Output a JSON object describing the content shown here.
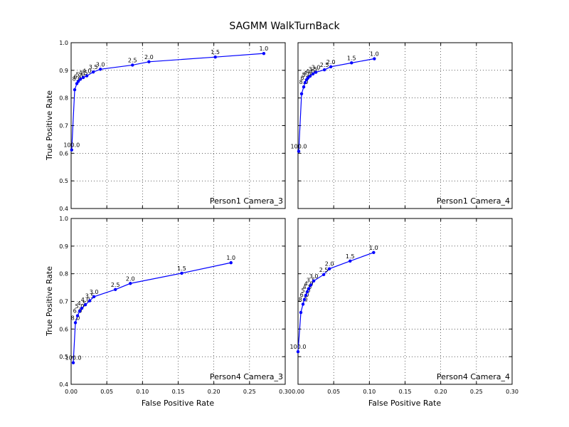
{
  "title": "SAGMM WalkTurnBack",
  "xlabel": "False Positive Rate",
  "ylabel": "True Positive Rate",
  "colors": {
    "series": "#0000ff",
    "axes": "#000000"
  },
  "chart_data": [
    {
      "type": "line",
      "panel_label": "Person1 Camera_3",
      "xlim": [
        0,
        0.3
      ],
      "ylim": [
        0.4,
        1.0
      ],
      "xticks": [
        "0.00",
        "0.05",
        "0.10",
        "0.15",
        "0.20",
        "0.25",
        "0.30"
      ],
      "yticks": [
        "0.4",
        "0.5",
        "0.6",
        "0.7",
        "0.8",
        "0.9",
        "1.0"
      ],
      "grid": true,
      "points": [
        {
          "x": 0.0008,
          "y": 0.612,
          "label": "100.0"
        },
        {
          "x": 0.005,
          "y": 0.83,
          "label": ""
        },
        {
          "x": 0.008,
          "y": 0.852,
          "label": "8.0"
        },
        {
          "x": 0.01,
          "y": 0.86,
          "label": "6.0"
        },
        {
          "x": 0.013,
          "y": 0.868,
          "label": "5.0"
        },
        {
          "x": 0.017,
          "y": 0.874,
          "label": "4.5"
        },
        {
          "x": 0.022,
          "y": 0.88,
          "label": "4.0"
        },
        {
          "x": 0.031,
          "y": 0.894,
          "label": "3.5"
        },
        {
          "x": 0.041,
          "y": 0.904,
          "label": "3.0"
        },
        {
          "x": 0.086,
          "y": 0.919,
          "label": "2.5"
        },
        {
          "x": 0.109,
          "y": 0.931,
          "label": "2.0"
        },
        {
          "x": 0.202,
          "y": 0.948,
          "label": "1.5"
        },
        {
          "x": 0.27,
          "y": 0.961,
          "label": "1.0"
        }
      ]
    },
    {
      "type": "line",
      "panel_label": "Person1 Camera_4",
      "xlim": [
        0,
        0.3
      ],
      "ylim": [
        0.4,
        1.0
      ],
      "xticks": [
        "0.00",
        "0.05",
        "0.10",
        "0.15",
        "0.20",
        "0.25",
        "0.30"
      ],
      "yticks": [],
      "grid": true,
      "points": [
        {
          "x": 0.001,
          "y": 0.607,
          "label": "100.0"
        },
        {
          "x": 0.005,
          "y": 0.815,
          "label": ""
        },
        {
          "x": 0.008,
          "y": 0.84,
          "label": "8.0"
        },
        {
          "x": 0.01,
          "y": 0.856,
          "label": "6.0"
        },
        {
          "x": 0.012,
          "y": 0.866,
          "label": "5.0"
        },
        {
          "x": 0.014,
          "y": 0.873,
          "label": "4.5"
        },
        {
          "x": 0.017,
          "y": 0.879,
          "label": "4.0"
        },
        {
          "x": 0.021,
          "y": 0.887,
          "label": "3.5"
        },
        {
          "x": 0.025,
          "y": 0.893,
          "label": "3.0"
        },
        {
          "x": 0.037,
          "y": 0.902,
          "label": "2.5"
        },
        {
          "x": 0.046,
          "y": 0.913,
          "label": "2.0"
        },
        {
          "x": 0.075,
          "y": 0.927,
          "label": "1.5"
        },
        {
          "x": 0.107,
          "y": 0.942,
          "label": "1.0"
        }
      ]
    },
    {
      "type": "line",
      "panel_label": "Person4 Camera_3",
      "xlim": [
        0,
        0.3
      ],
      "ylim": [
        0.4,
        1.0
      ],
      "xticks": [
        "0.00",
        "0.05",
        "0.10",
        "0.15",
        "0.20",
        "0.25",
        "0.30"
      ],
      "yticks": [
        "0.4",
        "0.5",
        "0.6",
        "0.7",
        "0.8",
        "0.9",
        "1.0"
      ],
      "grid": true,
      "points": [
        {
          "x": 0.003,
          "y": 0.478,
          "label": "100.0"
        },
        {
          "x": 0.006,
          "y": 0.623,
          "label": "8.0"
        },
        {
          "x": 0.009,
          "y": 0.648,
          "label": "6.0"
        },
        {
          "x": 0.012,
          "y": 0.665,
          "label": "5.0"
        },
        {
          "x": 0.015,
          "y": 0.675,
          "label": "4.5"
        },
        {
          "x": 0.02,
          "y": 0.688,
          "label": "4.0"
        },
        {
          "x": 0.026,
          "y": 0.702,
          "label": "3.5"
        },
        {
          "x": 0.032,
          "y": 0.717,
          "label": "3.0"
        },
        {
          "x": 0.062,
          "y": 0.743,
          "label": "2.5"
        },
        {
          "x": 0.083,
          "y": 0.765,
          "label": "2.0"
        },
        {
          "x": 0.155,
          "y": 0.802,
          "label": "1.5"
        },
        {
          "x": 0.224,
          "y": 0.84,
          "label": "1.0"
        }
      ]
    },
    {
      "type": "line",
      "panel_label": "Person4 Camera_4",
      "xlim": [
        0,
        0.3
      ],
      "ylim": [
        0.4,
        1.0
      ],
      "xticks": [
        "0.00",
        "0.05",
        "0.10",
        "0.15",
        "0.20",
        "0.25",
        "0.30"
      ],
      "yticks": [],
      "grid": true,
      "points": [
        {
          "x": 0.0,
          "y": 0.518,
          "label": "100.0"
        },
        {
          "x": 0.004,
          "y": 0.66,
          "label": ""
        },
        {
          "x": 0.007,
          "y": 0.69,
          "label": "8.0"
        },
        {
          "x": 0.009,
          "y": 0.707,
          "label": "6.0"
        },
        {
          "x": 0.011,
          "y": 0.722,
          "label": "5.0"
        },
        {
          "x": 0.013,
          "y": 0.735,
          "label": "4.5"
        },
        {
          "x": 0.015,
          "y": 0.746,
          "label": "4.0"
        },
        {
          "x": 0.018,
          "y": 0.759,
          "label": "3.5"
        },
        {
          "x": 0.022,
          "y": 0.774,
          "label": "3.0"
        },
        {
          "x": 0.036,
          "y": 0.797,
          "label": "2.5"
        },
        {
          "x": 0.044,
          "y": 0.818,
          "label": "2.0"
        },
        {
          "x": 0.073,
          "y": 0.846,
          "label": "1.5"
        },
        {
          "x": 0.106,
          "y": 0.877,
          "label": "1.0"
        }
      ]
    }
  ]
}
